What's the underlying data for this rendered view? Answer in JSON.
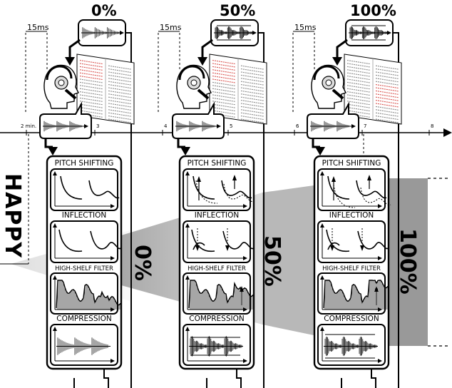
{
  "emotion_label": "HAPPY",
  "delay_label": "15ms",
  "timeline": {
    "ticks": [
      "2 min.",
      "3",
      "4",
      "5",
      "6",
      "7",
      "8"
    ]
  },
  "conditions": [
    {
      "top_label": "0%",
      "side_label": "0%"
    },
    {
      "top_label": "50%",
      "side_label": "50%"
    },
    {
      "top_label": "100%",
      "side_label": "100%"
    }
  ],
  "module_labels": {
    "pitch": "PITCH SHIFTING",
    "inflection": "INFLECTION",
    "filter": "HIGH-SHELF FILTER",
    "compression": "COMPRESSION"
  },
  "colors": {
    "black": "#000000",
    "gray_dark": "#8f8f8f",
    "gray_mid": "#b4b4b4",
    "gray_light": "#e6e6e6",
    "text_red": "#d9534f"
  }
}
